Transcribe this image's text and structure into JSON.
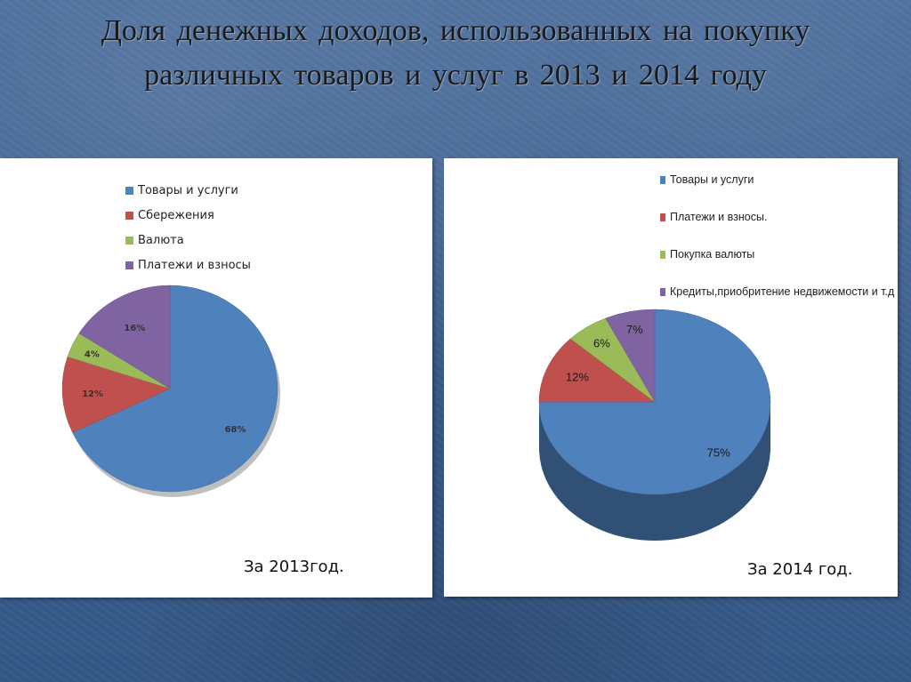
{
  "title_lines": [
    "Доля денежных доходов, использованных на покупку",
    "различных товаров  и  услуг в 2013 и 2014 году"
  ],
  "chart_data": [
    {
      "type": "pie",
      "caption": "За 2013год.",
      "legend_position": "top-left",
      "categories": [
        "Товары и услуги",
        "Сбережения",
        "Валюта",
        "Платежи и взносы"
      ],
      "values": [
        68,
        12,
        4,
        16
      ],
      "labels": [
        "68%",
        "12%",
        "4%",
        "16%"
      ],
      "colors": [
        "#4f81bd",
        "#c0504d",
        "#9bbb59",
        "#8064a2"
      ]
    },
    {
      "type": "pie",
      "caption": "За 2014 год.",
      "legend_position": "top",
      "categories": [
        "Товары и услуги",
        "Платежи и взносы.",
        "Покупка валюты",
        "Кредиты,приобритение  недвижемости и т.д"
      ],
      "values": [
        75,
        12,
        6,
        7
      ],
      "labels": [
        "75%",
        "12%",
        "6%",
        "7%"
      ],
      "colors": [
        "#4f81bd",
        "#c0504d",
        "#9bbb59",
        "#8064a2"
      ]
    }
  ]
}
